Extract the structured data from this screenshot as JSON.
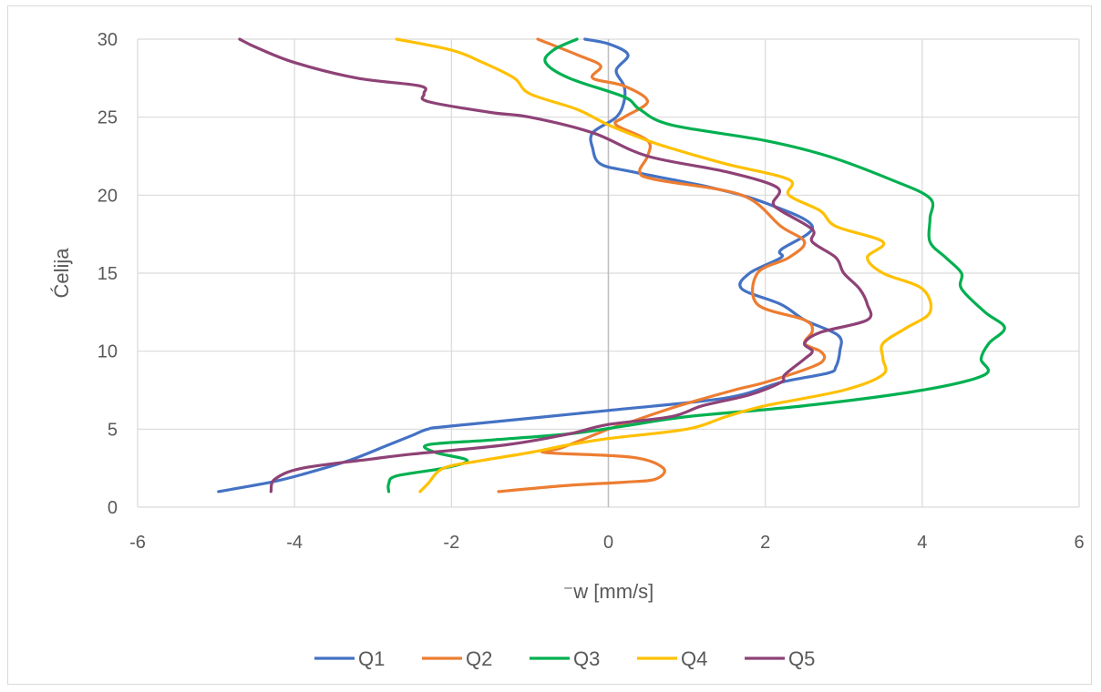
{
  "chart_data": {
    "type": "line",
    "title": "",
    "xlabel": "⁻w [mm/s]",
    "ylabel": "Ćelija",
    "xlim": [
      -6,
      6
    ],
    "ylim": [
      0,
      30
    ],
    "x_ticks": [
      -6,
      -4,
      -2,
      0,
      2,
      4,
      6
    ],
    "y_ticks": [
      0,
      5,
      10,
      15,
      20,
      25,
      30
    ],
    "grid": "major gridlines on both axes",
    "legend_position": "bottom",
    "series": [
      {
        "name": "Q1",
        "color": "#4472C4",
        "points": [
          [
            -4.97,
            1
          ],
          [
            -4.3,
            1.6
          ],
          [
            -3.9,
            2.1
          ],
          [
            -3.3,
            3
          ],
          [
            -2.8,
            4
          ],
          [
            -2.5,
            4.6
          ],
          [
            -2.3,
            5
          ],
          [
            -2.0,
            5.2
          ],
          [
            0.0,
            6.2
          ],
          [
            1.5,
            7
          ],
          [
            2.2,
            8
          ],
          [
            2.8,
            8.6
          ],
          [
            2.9,
            9
          ],
          [
            2.95,
            10
          ],
          [
            2.93,
            11
          ],
          [
            2.5,
            12
          ],
          [
            2.2,
            13
          ],
          [
            1.7,
            14
          ],
          [
            1.8,
            15
          ],
          [
            2.2,
            16
          ],
          [
            2.2,
            16.5
          ],
          [
            2.6,
            18
          ],
          [
            2.0,
            19.5
          ],
          [
            1.3,
            20.5
          ],
          [
            0.3,
            21.5
          ],
          [
            -0.1,
            22
          ],
          [
            -0.2,
            23
          ],
          [
            -0.2,
            24
          ],
          [
            0.1,
            25
          ],
          [
            0.2,
            26
          ],
          [
            0.2,
            27
          ],
          [
            0.1,
            28
          ],
          [
            0.25,
            29
          ],
          [
            0.0,
            29.7
          ],
          [
            -0.3,
            30
          ]
        ]
      },
      {
        "name": "Q2",
        "color": "#ED7D31",
        "points": [
          [
            -1.4,
            1
          ],
          [
            -0.5,
            1.4
          ],
          [
            0.2,
            1.6
          ],
          [
            0.6,
            1.8
          ],
          [
            0.7,
            2.5
          ],
          [
            0.3,
            3.2
          ],
          [
            -0.8,
            3.5
          ],
          [
            -0.6,
            3.8
          ],
          [
            -0.1,
            4.8
          ],
          [
            0,
            5
          ],
          [
            0.3,
            5.5
          ],
          [
            0.9,
            6.5
          ],
          [
            1.6,
            7.5
          ],
          [
            2.0,
            8
          ],
          [
            2.6,
            9
          ],
          [
            2.75,
            9.5
          ],
          [
            2.7,
            10
          ],
          [
            2.5,
            10.5
          ],
          [
            2.6,
            11.3
          ],
          [
            2.5,
            12
          ],
          [
            1.9,
            13
          ],
          [
            1.9,
            15
          ],
          [
            2.3,
            16
          ],
          [
            2.5,
            17
          ],
          [
            2.2,
            18
          ],
          [
            1.7,
            20
          ],
          [
            0.6,
            21
          ],
          [
            0.4,
            21.5
          ],
          [
            0.5,
            22.5
          ],
          [
            0.5,
            23.5
          ],
          [
            0.1,
            24.5
          ],
          [
            0.2,
            25
          ],
          [
            0.5,
            26
          ],
          [
            0.2,
            27
          ],
          [
            -0.2,
            27.5
          ],
          [
            -0.1,
            28.3
          ],
          [
            -0.4,
            29
          ],
          [
            -0.9,
            30
          ]
        ]
      },
      {
        "name": "Q3",
        "color": "#00B050",
        "points": [
          [
            -2.8,
            1
          ],
          [
            -2.8,
            1.5
          ],
          [
            -2.7,
            2
          ],
          [
            -2.1,
            2.5
          ],
          [
            -1.8,
            3
          ],
          [
            -2.2,
            3.5
          ],
          [
            -2.3,
            4
          ],
          [
            -1.5,
            4.3
          ],
          [
            -0.5,
            4.7
          ],
          [
            0.2,
            5.2
          ],
          [
            1.0,
            5.8
          ],
          [
            2.5,
            6.5
          ],
          [
            4.0,
            7.5
          ],
          [
            4.8,
            8.5
          ],
          [
            4.75,
            9.5
          ],
          [
            4.85,
            10.5
          ],
          [
            5.05,
            11.5
          ],
          [
            4.8,
            12.5
          ],
          [
            4.5,
            14
          ],
          [
            4.5,
            15
          ],
          [
            4.3,
            16
          ],
          [
            4.1,
            17
          ],
          [
            4.1,
            18.5
          ],
          [
            4.1,
            19.8
          ],
          [
            3.6,
            21
          ],
          [
            2.8,
            22.5
          ],
          [
            2.0,
            23.5
          ],
          [
            0.8,
            24.5
          ],
          [
            0.4,
            25.5
          ],
          [
            0.2,
            26.3
          ],
          [
            -0.5,
            27.5
          ],
          [
            -0.8,
            28.5
          ],
          [
            -0.7,
            29.3
          ],
          [
            -0.4,
            30
          ]
        ]
      },
      {
        "name": "Q4",
        "color": "#FFC000",
        "points": [
          [
            -2.4,
            1
          ],
          [
            -2.3,
            1.5
          ],
          [
            -2.1,
            2.5
          ],
          [
            -1.6,
            3
          ],
          [
            -1.0,
            3.5
          ],
          [
            -0.5,
            4
          ],
          [
            0.0,
            4.4
          ],
          [
            1.0,
            5
          ],
          [
            1.5,
            5.8
          ],
          [
            2.0,
            6.5
          ],
          [
            3.0,
            7.5
          ],
          [
            3.5,
            8.5
          ],
          [
            3.5,
            9.5
          ],
          [
            3.5,
            10.5
          ],
          [
            3.8,
            11.5
          ],
          [
            4.1,
            12.5
          ],
          [
            4.0,
            14
          ],
          [
            3.5,
            15
          ],
          [
            3.3,
            16
          ],
          [
            3.5,
            17
          ],
          [
            2.9,
            18
          ],
          [
            2.7,
            19
          ],
          [
            2.3,
            20
          ],
          [
            2.3,
            21
          ],
          [
            1.5,
            22
          ],
          [
            0.8,
            23
          ],
          [
            0.5,
            23.5
          ],
          [
            0.0,
            24.5
          ],
          [
            -0.4,
            25.5
          ],
          [
            -1.0,
            26.5
          ],
          [
            -1.2,
            27.5
          ],
          [
            -1.6,
            28.5
          ],
          [
            -2.0,
            29.3
          ],
          [
            -2.7,
            30
          ]
        ]
      },
      {
        "name": "Q5",
        "color": "#8E4276",
        "points": [
          [
            -4.3,
            1
          ],
          [
            -4.25,
            1.8
          ],
          [
            -3.9,
            2.5
          ],
          [
            -3.0,
            3.1
          ],
          [
            -2.5,
            3.4
          ],
          [
            -1.3,
            4
          ],
          [
            -0.5,
            4.7
          ],
          [
            0.0,
            5.3
          ],
          [
            0.8,
            5.8
          ],
          [
            1.2,
            6.5
          ],
          [
            1.8,
            7.2
          ],
          [
            2.2,
            8
          ],
          [
            2.25,
            8.5
          ],
          [
            2.5,
            9.5
          ],
          [
            2.6,
            10
          ],
          [
            2.5,
            10.5
          ],
          [
            2.7,
            11.2
          ],
          [
            3.3,
            12
          ],
          [
            3.3,
            13
          ],
          [
            3.2,
            14
          ],
          [
            3.0,
            15
          ],
          [
            2.9,
            16
          ],
          [
            2.6,
            17
          ],
          [
            2.6,
            17.8
          ],
          [
            2.2,
            19
          ],
          [
            2.1,
            19.5
          ],
          [
            2.15,
            20.5
          ],
          [
            1.5,
            21.5
          ],
          [
            0.5,
            22.5
          ],
          [
            -0.2,
            24
          ],
          [
            -1.0,
            25
          ],
          [
            -1.5,
            25.3
          ],
          [
            -2.3,
            26
          ],
          [
            -2.35,
            26.5
          ],
          [
            -2.4,
            27
          ],
          [
            -3.2,
            27.5
          ],
          [
            -4.0,
            28.5
          ],
          [
            -4.5,
            29.5
          ],
          [
            -4.7,
            30
          ]
        ]
      }
    ]
  }
}
